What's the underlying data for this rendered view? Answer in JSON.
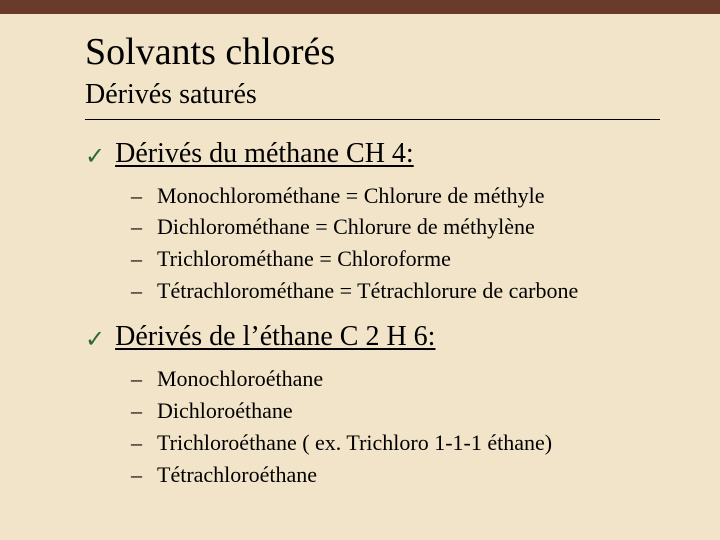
{
  "colors": {
    "background": "#f2e4c8",
    "topbar": "#6a3a2a",
    "text": "#000000",
    "rule": "#000000",
    "check": "#2e6b2e"
  },
  "typography": {
    "font_family": "Times New Roman, serif",
    "title_size_pt": 38,
    "subtitle_size_pt": 28,
    "section_title_size_pt": 28,
    "item_size_pt": 22
  },
  "title": "Solvants chlorés",
  "subtitle": "Dérivés saturés",
  "check_glyph": "✓",
  "dash_glyph": "–",
  "sections": [
    {
      "heading": "Dérivés du méthane CH 4:",
      "items": [
        "Monochlorométhane = Chlorure de méthyle",
        "Dichlorométhane = Chlorure de méthylène",
        "Trichlorométhane = Chloroforme",
        "Tétrachlorométhane = Tétrachlorure de carbone"
      ]
    },
    {
      "heading": "Dérivés de l’éthane C 2 H 6:",
      "items": [
        "Monochloroéthane",
        "Dichloroéthane",
        "Trichloroéthane ( ex. Trichloro 1-1-1 éthane)",
        "Tétrachloroéthane"
      ]
    }
  ]
}
